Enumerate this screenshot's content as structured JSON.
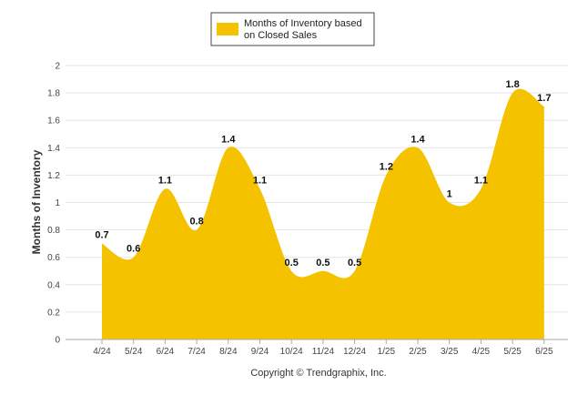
{
  "chart_data": {
    "type": "area",
    "categories": [
      "4/24",
      "5/24",
      "6/24",
      "7/24",
      "8/24",
      "9/24",
      "10/24",
      "11/24",
      "12/24",
      "1/25",
      "2/25",
      "3/25",
      "4/25",
      "5/25",
      "6/25"
    ],
    "series": [
      {
        "name": "Months of Inventory based on Closed Sales",
        "name_lines": [
          "Months of Inventory based",
          "on Closed Sales"
        ],
        "values": [
          0.7,
          0.6,
          1.1,
          0.8,
          1.4,
          1.1,
          0.5,
          0.5,
          0.5,
          1.2,
          1.4,
          1,
          1.1,
          1.8,
          1.7
        ],
        "labels": [
          "0.7",
          "0.6",
          "1.1",
          "0.8",
          "1.4",
          "1.1",
          "0.5",
          "0.5",
          "0.5",
          "1.2",
          "1.4",
          "1",
          "1.1",
          "1.8",
          "1.7"
        ],
        "color": "#f5c200"
      }
    ],
    "ylabel": "Months of Inventory",
    "ylim": [
      0,
      2
    ],
    "yticks": [
      "0",
      "0.2",
      "0.4",
      "0.6",
      "0.8",
      "1",
      "1.2",
      "1.4",
      "1.6",
      "1.8",
      "2"
    ],
    "grid": true,
    "legend": "top-center"
  },
  "credit": "Copyright © Trendgraphix, Inc."
}
